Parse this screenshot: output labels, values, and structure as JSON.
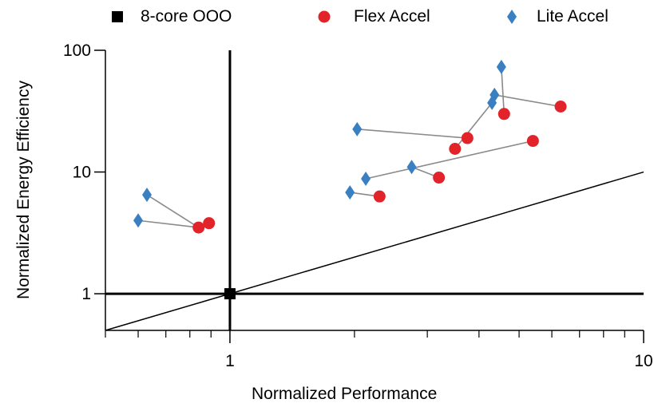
{
  "chart_data": {
    "type": "scatter",
    "title": "",
    "xlabel": "Normalized Performance",
    "ylabel": "Normalized Energy Efficiency",
    "xscale": "log",
    "yscale": "log",
    "xlim": [
      0.5,
      10
    ],
    "ylim": [
      0.5,
      100
    ],
    "x_tick_labels": [
      "1",
      "10"
    ],
    "y_tick_labels": [
      "1",
      "10",
      "100"
    ],
    "legend_position": "top",
    "grid": false,
    "reference_lines": [
      {
        "type": "vertical",
        "x": 1
      },
      {
        "type": "horizontal",
        "y": 1
      },
      {
        "type": "diagonal",
        "description": "y = x",
        "from": [
          0.5,
          0.5
        ],
        "to": [
          10,
          10
        ]
      }
    ],
    "series": [
      {
        "name": "8-core OOO",
        "marker": "square",
        "color": "#000000",
        "points": [
          [
            1.0,
            1.0
          ]
        ]
      },
      {
        "name": "Flex Accel",
        "marker": "circle",
        "color": "#e3232a",
        "points": [
          [
            0.84,
            3.5
          ],
          [
            0.89,
            3.8
          ],
          [
            2.3,
            6.3
          ],
          [
            3.2,
            9.0
          ],
          [
            3.5,
            15.5
          ],
          [
            3.75,
            19.0
          ],
          [
            4.6,
            30.0
          ],
          [
            5.4,
            18.0
          ],
          [
            6.3,
            34.5
          ]
        ]
      },
      {
        "name": "Lite Accel",
        "marker": "diamond",
        "color": "#3a7fc1",
        "points": [
          [
            0.6,
            4.0
          ],
          [
            0.63,
            6.5
          ],
          [
            1.95,
            6.8
          ],
          [
            2.13,
            8.8
          ],
          [
            2.03,
            22.5
          ],
          [
            2.75,
            11.0
          ],
          [
            4.3,
            37.0
          ],
          [
            4.36,
            43.0
          ],
          [
            4.53,
            73.0
          ]
        ]
      }
    ],
    "links": [
      {
        "from": [
          0.6,
          4.0
        ],
        "to": [
          0.84,
          3.5
        ]
      },
      {
        "from": [
          0.63,
          6.5
        ],
        "to": [
          0.84,
          3.5
        ]
      },
      {
        "from": [
          1.95,
          6.8
        ],
        "to": [
          2.3,
          6.3
        ]
      },
      {
        "from": [
          2.13,
          8.8
        ],
        "to": [
          5.4,
          18.0
        ]
      },
      {
        "from": [
          2.75,
          11.0
        ],
        "to": [
          3.2,
          9.0
        ]
      },
      {
        "from": [
          2.03,
          22.5
        ],
        "to": [
          3.75,
          19.0
        ]
      },
      {
        "from": [
          4.3,
          37.0
        ],
        "to": [
          3.5,
          15.5
        ]
      },
      {
        "from": [
          4.36,
          43.0
        ],
        "to": [
          6.3,
          34.5
        ]
      },
      {
        "from": [
          4.53,
          73.0
        ],
        "to": [
          4.6,
          30.0
        ]
      }
    ]
  }
}
